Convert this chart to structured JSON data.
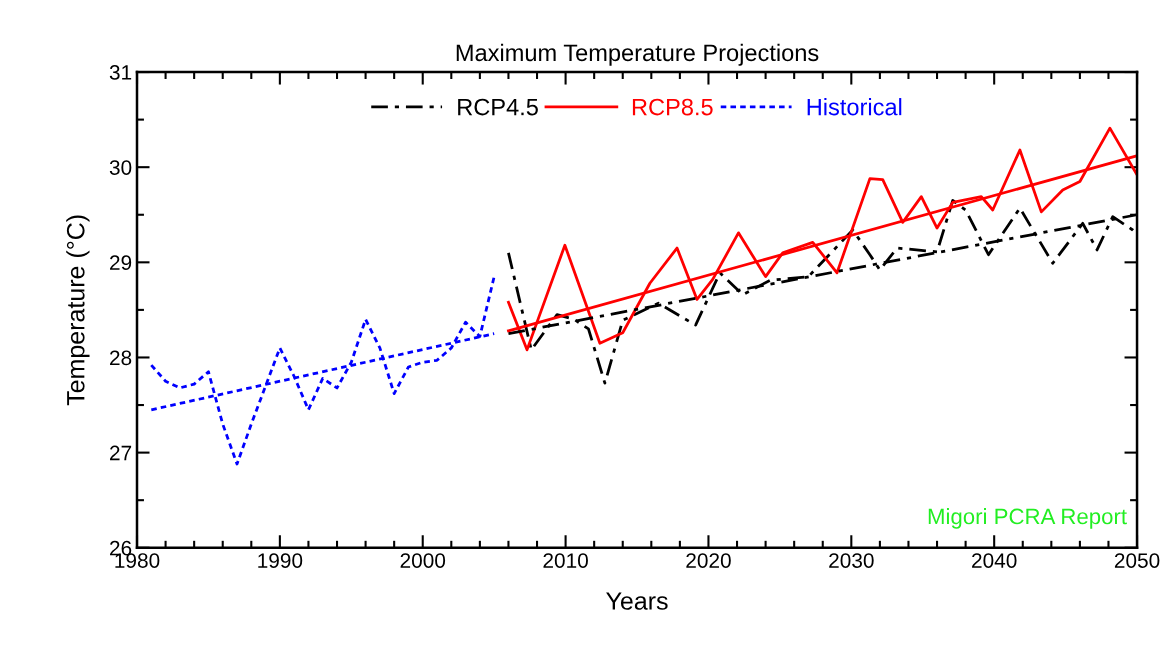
{
  "chart_data": {
    "type": "line",
    "title": "Maximum Temperature Projections",
    "xlabel": "Years",
    "ylabel": "Temperature (°C)",
    "xlim": [
      1980,
      2050
    ],
    "xticks": [
      1980,
      1990,
      2000,
      2010,
      2020,
      2030,
      2040,
      2050
    ],
    "ylim": [
      26,
      31
    ],
    "yticks": [
      26,
      27,
      28,
      29,
      30,
      31
    ],
    "grid": false,
    "legend": "top",
    "marker": "none",
    "annotations": [
      "Migori PCRA Report"
    ],
    "series": [
      {
        "name": "RCP4.5",
        "color": "#000000",
        "line_style": "dashdot",
        "x": [
          2006.0,
          2007.6,
          2009.4,
          2010.6,
          2011.6,
          2012.75,
          2014.0,
          2016.5,
          2019.1,
          2020.8,
          2022.4,
          2024.3,
          2027.0,
          2030.1,
          2031.3,
          2032.0,
          2033.2,
          2036.0,
          2037.1,
          2038.0,
          2039.6,
          2041.8,
          2044.1,
          2046.2,
          2047.2,
          2048.3,
          2049.7,
          2050.0
        ],
        "values": [
          29.1,
          28.08,
          28.45,
          28.4,
          28.3,
          27.73,
          28.39,
          28.57,
          28.34,
          28.89,
          28.66,
          28.81,
          28.85,
          29.34,
          29.08,
          28.92,
          29.15,
          29.11,
          29.65,
          29.55,
          29.08,
          29.57,
          28.99,
          29.41,
          29.13,
          29.48,
          29.34,
          29.3
        ]
      },
      {
        "name": "RCP8.5",
        "color": "#ff0000",
        "line_style": "solid",
        "x": [
          2006.0,
          2007.3,
          2009.95,
          2012.4,
          2014.0,
          2015.9,
          2017.8,
          2019.2,
          2020.3,
          2022.1,
          2024.0,
          2025.2,
          2027.3,
          2029.0,
          2031.3,
          2032.2,
          2033.6,
          2034.9,
          2036.0,
          2037.1,
          2039.1,
          2039.9,
          2041.8,
          2043.3,
          2044.8,
          2046.0,
          2048.1,
          2050.0
        ],
        "values": [
          28.58,
          28.08,
          29.18,
          28.15,
          28.26,
          28.78,
          29.15,
          28.61,
          28.82,
          29.31,
          28.85,
          29.1,
          29.21,
          28.89,
          29.88,
          29.87,
          29.42,
          29.69,
          29.36,
          29.63,
          29.69,
          29.55,
          30.18,
          29.53,
          29.76,
          29.85,
          30.41,
          29.92
        ]
      },
      {
        "name": "Historical",
        "color": "#0000ff",
        "line_style": "dotted",
        "x": [
          1981,
          1982,
          1983,
          1984,
          1985,
          1986,
          1987,
          1988,
          1989,
          1990,
          1991,
          1992,
          1993,
          1994,
          1995,
          1996,
          1997,
          1998,
          1999,
          2000,
          2001,
          2002,
          2003,
          2004,
          2005
        ],
        "values": [
          27.92,
          27.75,
          27.68,
          27.72,
          27.85,
          27.3,
          26.88,
          27.3,
          27.7,
          28.1,
          27.8,
          27.45,
          27.78,
          27.68,
          27.95,
          28.4,
          28.1,
          27.62,
          27.9,
          27.95,
          27.97,
          28.1,
          28.37,
          28.22,
          28.85
        ]
      },
      {
        "type": "line",
        "color": "#000000",
        "line_style": "dashdot",
        "x": [
          2006,
          2050
        ],
        "values": [
          28.25,
          29.5
        ]
      },
      {
        "type": "line",
        "color": "#ff0000",
        "line_style": "solid",
        "x": [
          2006,
          2050
        ],
        "values": [
          28.28,
          30.12
        ]
      },
      {
        "type": "line",
        "color": "#0000ff",
        "line_style": "dotted",
        "x": [
          1981,
          2005
        ],
        "values": [
          27.45,
          28.25
        ]
      }
    ]
  }
}
